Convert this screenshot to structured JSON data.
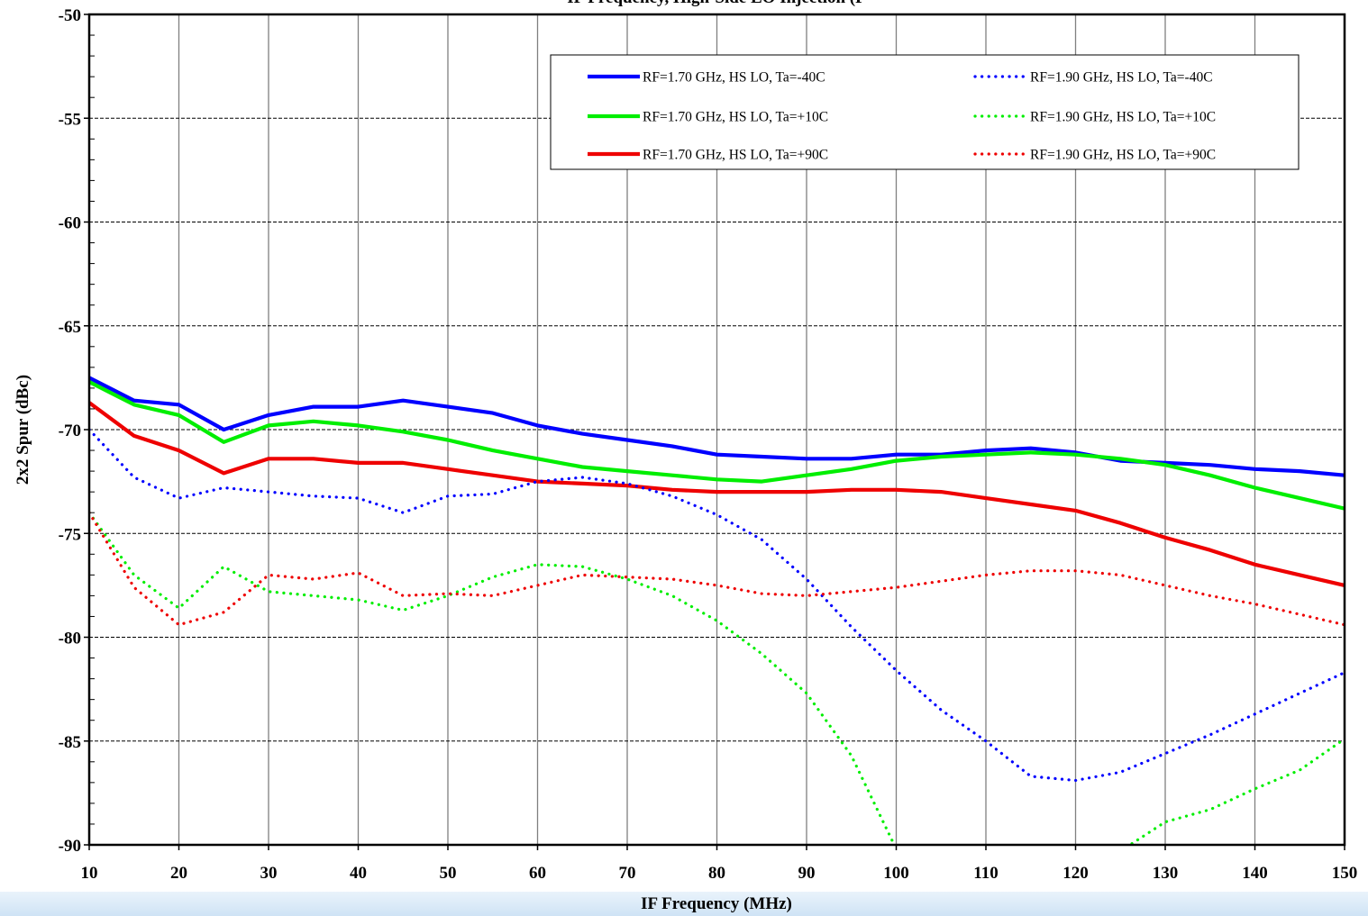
{
  "chart_data": {
    "type": "line",
    "title": "IF Frequency, High-Side LO Injection (P",
    "xlabel": "IF Frequency (MHz)",
    "ylabel": "2x2 Spur (dBc)",
    "xlim": [
      10,
      150
    ],
    "ylim": [
      -90,
      -50
    ],
    "x_ticks": [
      10,
      20,
      30,
      40,
      50,
      60,
      70,
      80,
      90,
      100,
      110,
      120,
      130,
      140,
      150
    ],
    "y_ticks": [
      -50,
      -55,
      -60,
      -65,
      -70,
      -75,
      -80,
      -85,
      -90
    ],
    "grid": true,
    "legend_position": "top-right",
    "x": [
      10,
      15,
      20,
      25,
      30,
      35,
      40,
      45,
      50,
      55,
      60,
      65,
      70,
      75,
      80,
      85,
      90,
      95,
      100,
      105,
      110,
      115,
      120,
      125,
      130,
      135,
      140,
      145,
      150
    ],
    "series": [
      {
        "name": "RF=1.70 GHz, HS LO, Ta=-40C",
        "color": "#0000ff",
        "style": "solid",
        "values": [
          -67.5,
          -68.6,
          -68.8,
          -70.0,
          -69.3,
          -68.9,
          -68.9,
          -68.6,
          -68.9,
          -69.2,
          -69.8,
          -70.2,
          -70.5,
          -70.8,
          -71.2,
          -71.3,
          -71.4,
          -71.4,
          -71.2,
          -71.2,
          -71.0,
          -70.9,
          -71.1,
          -71.5,
          -71.6,
          -71.7,
          -71.9,
          -72.0,
          -72.2
        ]
      },
      {
        "name": "RF=1.70 GHz, HS LO, Ta=+10C",
        "color": "#00ee00",
        "style": "solid",
        "values": [
          -67.7,
          -68.8,
          -69.3,
          -70.6,
          -69.8,
          -69.6,
          -69.8,
          -70.1,
          -70.5,
          -71.0,
          -71.4,
          -71.8,
          -72.0,
          -72.2,
          -72.4,
          -72.5,
          -72.2,
          -71.9,
          -71.5,
          -71.3,
          -71.2,
          -71.1,
          -71.2,
          -71.4,
          -71.7,
          -72.2,
          -72.8,
          -73.3,
          -73.8
        ]
      },
      {
        "name": "RF=1.70 GHz, HS LO, Ta=+90C",
        "color": "#ee0000",
        "style": "solid",
        "values": [
          -68.7,
          -70.3,
          -71.0,
          -72.1,
          -71.4,
          -71.4,
          -71.6,
          -71.6,
          -71.9,
          -72.2,
          -72.5,
          -72.6,
          -72.7,
          -72.9,
          -73.0,
          -73.0,
          -73.0,
          -72.9,
          -72.9,
          -73.0,
          -73.3,
          -73.6,
          -73.9,
          -74.5,
          -75.2,
          -75.8,
          -76.5,
          -77.0,
          -77.5
        ]
      },
      {
        "name": "RF=1.90 GHz, HS LO, Ta=-40C",
        "color": "#0000ff",
        "style": "dotted",
        "values": [
          -70.0,
          -72.3,
          -73.3,
          -72.8,
          -73.0,
          -73.2,
          -73.3,
          -74.0,
          -73.2,
          -73.1,
          -72.5,
          -72.3,
          -72.6,
          -73.2,
          -74.1,
          -75.3,
          -77.2,
          -79.5,
          -81.6,
          -83.5,
          -85.0,
          -86.7,
          -86.9,
          -86.5,
          -85.6,
          -84.7,
          -83.7,
          -82.7,
          -81.7
        ]
      },
      {
        "name": "RF=1.90 GHz, HS LO, Ta=+10C",
        "color": "#00ee00",
        "style": "dotted",
        "values": [
          -74.0,
          -77.0,
          -78.6,
          -76.6,
          -77.8,
          -78.0,
          -78.2,
          -78.7,
          -78.0,
          -77.1,
          -76.5,
          -76.6,
          -77.2,
          -78.0,
          -79.2,
          -80.8,
          -82.7,
          -85.7,
          -90.2,
          null,
          null,
          null,
          null,
          -90.3,
          -88.9,
          -88.3,
          -87.3,
          -86.4,
          -84.9
        ]
      },
      {
        "name": "RF=1.90 GHz, HS LO, Ta=+90C",
        "color": "#ee0000",
        "style": "dotted",
        "values": [
          -74.0,
          -77.6,
          -79.4,
          -78.8,
          -77.0,
          -77.2,
          -76.9,
          -78.0,
          -77.9,
          -78.0,
          -77.5,
          -77.0,
          -77.1,
          -77.2,
          -77.5,
          -77.9,
          -78.0,
          -77.8,
          -77.6,
          -77.3,
          -77.0,
          -76.8,
          -76.8,
          -77.0,
          -77.5,
          -78.0,
          -78.4,
          -78.9,
          -79.4
        ]
      }
    ]
  }
}
